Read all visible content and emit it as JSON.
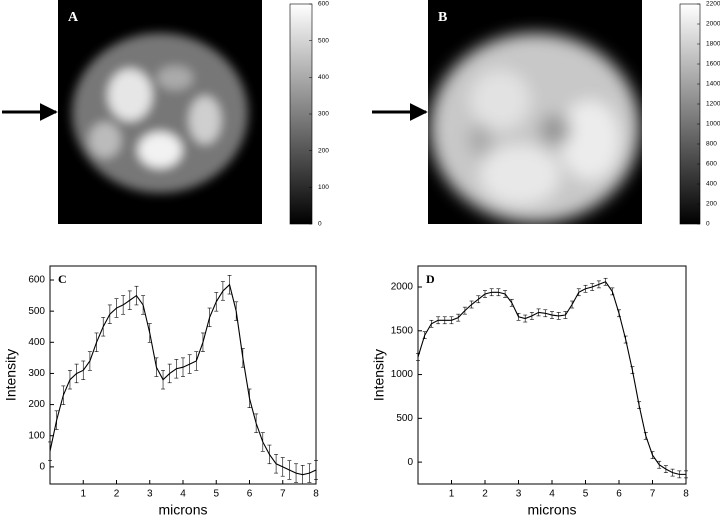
{
  "chart_data": [
    {
      "type": "image",
      "label": "A",
      "clim": [
        0,
        600
      ],
      "cticks": [
        0,
        100,
        200,
        300,
        400,
        500,
        600
      ]
    },
    {
      "type": "image",
      "label": "B",
      "clim": [
        0,
        2200
      ],
      "cticks": [
        0,
        200,
        400,
        600,
        800,
        1000,
        1200,
        1400,
        1600,
        1800,
        2000,
        2200
      ]
    },
    {
      "type": "line",
      "label": "C",
      "xlabel": "microns",
      "ylabel": "Intensity",
      "x": [
        0,
        0.2,
        0.4,
        0.6,
        0.8,
        1,
        1.2,
        1.4,
        1.6,
        1.8,
        2,
        2.2,
        2.4,
        2.6,
        2.8,
        3,
        3.2,
        3.4,
        3.6,
        3.8,
        4,
        4.2,
        4.4,
        4.6,
        4.8,
        5,
        5.2,
        5.4,
        5.6,
        5.8,
        6,
        6.2,
        6.4,
        6.6,
        6.8,
        7,
        7.2,
        7.4,
        7.6,
        7.8,
        8
      ],
      "series": [
        {
          "color": "#000000",
          "values": [
            50,
            150,
            230,
            280,
            300,
            310,
            340,
            400,
            450,
            490,
            510,
            520,
            535,
            550,
            520,
            430,
            320,
            280,
            300,
            315,
            320,
            330,
            340,
            400,
            480,
            530,
            565,
            585,
            500,
            350,
            220,
            140,
            80,
            40,
            10,
            0,
            -10,
            -20,
            -25,
            -20,
            -10
          ],
          "errors": [
            30,
            30,
            30,
            30,
            30,
            30,
            30,
            30,
            30,
            30,
            30,
            30,
            30,
            30,
            30,
            30,
            30,
            30,
            30,
            30,
            30,
            30,
            30,
            30,
            30,
            30,
            30,
            30,
            30,
            30,
            30,
            30,
            30,
            30,
            30,
            30,
            30,
            30,
            30,
            30,
            30
          ]
        }
      ],
      "xlim": [
        0,
        8
      ],
      "xticks": [
        1,
        2,
        3,
        4,
        5,
        6,
        7,
        8
      ],
      "ylim": [
        -55,
        645
      ],
      "yticks": [
        0,
        100,
        200,
        300,
        400,
        500,
        600
      ]
    },
    {
      "type": "line",
      "label": "D",
      "xlabel": "microns",
      "ylabel": "Intensity",
      "x": [
        0,
        0.2,
        0.4,
        0.6,
        0.8,
        1,
        1.2,
        1.4,
        1.6,
        1.8,
        2,
        2.2,
        2.4,
        2.6,
        2.8,
        3,
        3.2,
        3.4,
        3.6,
        3.8,
        4,
        4.2,
        4.4,
        4.6,
        4.8,
        5,
        5.2,
        5.4,
        5.6,
        5.8,
        6,
        6.2,
        6.4,
        6.6,
        6.8,
        7,
        7.2,
        7.4,
        7.6,
        7.8,
        8
      ],
      "series": [
        {
          "color": "#000000",
          "values": [
            1200,
            1450,
            1580,
            1620,
            1620,
            1620,
            1650,
            1730,
            1800,
            1860,
            1920,
            1940,
            1940,
            1920,
            1820,
            1660,
            1640,
            1670,
            1710,
            1700,
            1680,
            1670,
            1680,
            1800,
            1940,
            1980,
            2000,
            2030,
            2060,
            1950,
            1700,
            1400,
            1050,
            650,
            300,
            80,
            -30,
            -80,
            -120,
            -140,
            -140
          ],
          "errors": [
            40,
            40,
            40,
            40,
            40,
            40,
            40,
            40,
            40,
            40,
            40,
            40,
            40,
            40,
            40,
            40,
            40,
            40,
            40,
            40,
            40,
            40,
            40,
            40,
            40,
            40,
            40,
            40,
            40,
            40,
            40,
            40,
            40,
            40,
            40,
            40,
            40,
            40,
            40,
            40,
            40
          ]
        }
      ],
      "xlim": [
        0,
        8
      ],
      "xticks": [
        1,
        2,
        3,
        4,
        5,
        6,
        7,
        8
      ],
      "ylim": [
        -250,
        2240
      ],
      "yticks": [
        0,
        500,
        1000,
        1500,
        2000
      ]
    }
  ]
}
